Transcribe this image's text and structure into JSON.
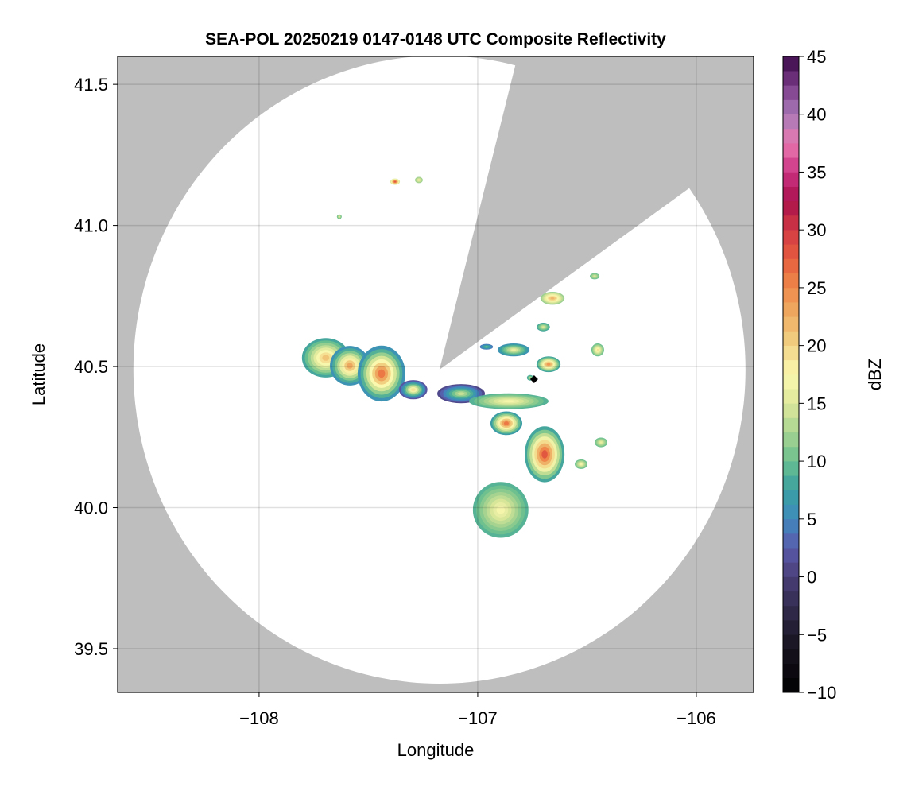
{
  "chart_data": {
    "type": "heatmap",
    "title": "SEA-POL 20250219 0147-0148 UTC Composite Reflectivity",
    "xlabel": "Longitude",
    "ylabel": "Latitude",
    "xlim": [
      -108.647,
      -105.738
    ],
    "ylim": [
      39.345,
      41.599
    ],
    "xticks": [
      -108,
      -107,
      -106
    ],
    "xtick_labels": [
      "−108",
      "−107",
      "−106"
    ],
    "yticks": [
      39.5,
      40.0,
      40.5,
      41.0,
      41.5
    ],
    "ytick_labels": [
      "39.5",
      "40.0",
      "40.5",
      "41.0",
      "41.5"
    ],
    "grid": true,
    "background_color": "#bebebe",
    "radar": {
      "center": {
        "lon": -107.175,
        "lat": 40.489
      },
      "range_deg": {
        "lon": 1.4,
        "lat": 1.113
      },
      "blocked_sector_azimuth_deg": [
        14,
        54
      ]
    },
    "marker": {
      "lon": -106.742,
      "lat": 40.455,
      "shape": "diamond",
      "color": "#000000"
    },
    "colorbar": {
      "label": "dBZ",
      "range": [
        -10,
        45
      ],
      "ticks": [
        -10,
        -5,
        0,
        5,
        10,
        15,
        20,
        25,
        30,
        35,
        40,
        45
      ],
      "tick_labels": [
        "−10",
        "−5",
        "0",
        "5",
        "10",
        "15",
        "20",
        "25",
        "30",
        "35",
        "40",
        "45"
      ],
      "stops": [
        [
          -10,
          "#000000"
        ],
        [
          -5,
          "#1f1a2a"
        ],
        [
          0,
          "#4a3f78"
        ],
        [
          2.5,
          "#5a5aaa"
        ],
        [
          5,
          "#3f8abf"
        ],
        [
          7.5,
          "#3aa0a0"
        ],
        [
          10,
          "#6ac08e"
        ],
        [
          12.5,
          "#a9d490"
        ],
        [
          15,
          "#dde89a"
        ],
        [
          17.5,
          "#fbf8b0"
        ],
        [
          20,
          "#f2d485"
        ],
        [
          22.5,
          "#eeae64"
        ],
        [
          25,
          "#ee8a4a"
        ],
        [
          27.5,
          "#e65e3e"
        ],
        [
          30,
          "#d23a44"
        ],
        [
          32.5,
          "#a8104c"
        ],
        [
          35,
          "#cc3282"
        ],
        [
          37.5,
          "#e878b0"
        ],
        [
          40,
          "#a87ab8"
        ],
        [
          42.5,
          "#7a3a88"
        ],
        [
          45,
          "#3a0a48"
        ]
      ]
    },
    "echoes": [
      {
        "lon": -107.695,
        "lat": 40.531,
        "rlon": 0.109,
        "rlat": 0.07,
        "edge_dbz": 8,
        "peak_dbz": 21
      },
      {
        "lon": -107.585,
        "lat": 40.503,
        "rlon": 0.091,
        "rlat": 0.07,
        "edge_dbz": 6,
        "peak_dbz": 23
      },
      {
        "lon": -107.44,
        "lat": 40.475,
        "rlon": 0.109,
        "rlat": 0.099,
        "edge_dbz": 6,
        "peak_dbz": 26
      },
      {
        "lon": -107.295,
        "lat": 40.418,
        "rlon": 0.065,
        "rlat": 0.034,
        "edge_dbz": 2,
        "peak_dbz": 19
      },
      {
        "lon": -107.076,
        "lat": 40.404,
        "rlon": 0.109,
        "rlat": 0.034,
        "edge_dbz": 1,
        "peak_dbz": 14
      },
      {
        "lon": -106.858,
        "lat": 40.377,
        "rlon": 0.182,
        "rlat": 0.028,
        "edge_dbz": 9,
        "peak_dbz": 17
      },
      {
        "lon": -106.869,
        "lat": 40.299,
        "rlon": 0.073,
        "rlat": 0.042,
        "edge_dbz": 7,
        "peak_dbz": 26
      },
      {
        "lon": -106.694,
        "lat": 40.189,
        "rlon": 0.091,
        "rlat": 0.099,
        "edge_dbz": 8,
        "peak_dbz": 28
      },
      {
        "lon": -106.895,
        "lat": 39.992,
        "rlon": 0.127,
        "rlat": 0.099,
        "edge_dbz": 9,
        "peak_dbz": 17
      },
      {
        "lon": -106.676,
        "lat": 40.508,
        "rlon": 0.055,
        "rlat": 0.028,
        "edge_dbz": 8,
        "peak_dbz": 24
      },
      {
        "lon": -106.658,
        "lat": 40.742,
        "rlon": 0.055,
        "rlat": 0.023,
        "edge_dbz": 12,
        "peak_dbz": 22
      },
      {
        "lon": -107.378,
        "lat": 41.155,
        "rlon": 0.022,
        "rlat": 0.011,
        "edge_dbz": 15,
        "peak_dbz": 28
      },
      {
        "lon": -106.451,
        "lat": 40.559,
        "rlon": 0.029,
        "rlat": 0.023,
        "edge_dbz": 10,
        "peak_dbz": 19
      },
      {
        "lon": -106.836,
        "lat": 40.559,
        "rlon": 0.073,
        "rlat": 0.023,
        "edge_dbz": 6,
        "peak_dbz": 16
      },
      {
        "lon": -107.633,
        "lat": 41.031,
        "rlon": 0.011,
        "rlat": 0.008,
        "edge_dbz": 10,
        "peak_dbz": 15
      },
      {
        "lon": -106.527,
        "lat": 40.154,
        "rlon": 0.029,
        "rlat": 0.017,
        "edge_dbz": 10,
        "peak_dbz": 17
      },
      {
        "lon": -106.436,
        "lat": 40.231,
        "rlon": 0.029,
        "rlat": 0.017,
        "edge_dbz": 10,
        "peak_dbz": 16
      },
      {
        "lon": -106.465,
        "lat": 40.82,
        "rlon": 0.022,
        "rlat": 0.011,
        "edge_dbz": 10,
        "peak_dbz": 15
      },
      {
        "lon": -107.269,
        "lat": 41.161,
        "rlon": 0.018,
        "rlat": 0.011,
        "edge_dbz": 12,
        "peak_dbz": 16
      },
      {
        "lon": -106.7,
        "lat": 40.64,
        "rlon": 0.03,
        "rlat": 0.015,
        "edge_dbz": 8,
        "peak_dbz": 15
      },
      {
        "lon": -106.96,
        "lat": 40.57,
        "rlon": 0.03,
        "rlat": 0.01,
        "edge_dbz": 4,
        "peak_dbz": 10
      },
      {
        "lon": -106.76,
        "lat": 40.46,
        "rlon": 0.015,
        "rlat": 0.01,
        "edge_dbz": 8,
        "peak_dbz": 13
      }
    ]
  }
}
